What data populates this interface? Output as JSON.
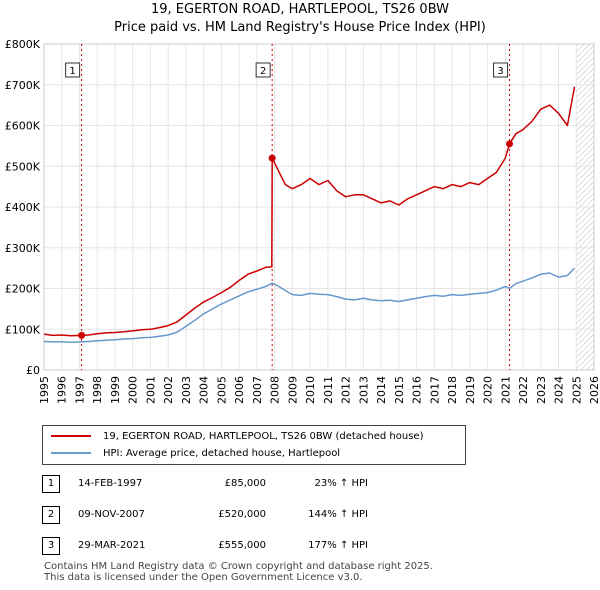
{
  "chart_data": {
    "type": "line",
    "title": "19, EGERTON ROAD, HARTLEPOOL, TS26 0BW",
    "subtitle": "Price paid vs. HM Land Registry's House Price Index (HPI)",
    "xlabel": "",
    "ylabel": "",
    "xlim": [
      1995,
      2026
    ],
    "ylim": [
      0,
      800000
    ],
    "x_ticks": [
      "1995",
      "1996",
      "1997",
      "1998",
      "1999",
      "2000",
      "2001",
      "2002",
      "2003",
      "2004",
      "2005",
      "2006",
      "2007",
      "2008",
      "2009",
      "2010",
      "2011",
      "2012",
      "2013",
      "2014",
      "2015",
      "2016",
      "2017",
      "2018",
      "2019",
      "2020",
      "2021",
      "2022",
      "2023",
      "2024",
      "2025",
      "2026"
    ],
    "y_ticks": [
      {
        "value": 0,
        "label": "£0"
      },
      {
        "value": 100000,
        "label": "£100K"
      },
      {
        "value": 200000,
        "label": "£200K"
      },
      {
        "value": 300000,
        "label": "£300K"
      },
      {
        "value": 400000,
        "label": "£400K"
      },
      {
        "value": 500000,
        "label": "£500K"
      },
      {
        "value": 600000,
        "label": "£600K"
      },
      {
        "value": 700000,
        "label": "£700K"
      },
      {
        "value": 800000,
        "label": "£800K"
      }
    ],
    "series": [
      {
        "name": "19, EGERTON ROAD, HARTLEPOOL, TS26 0BW (detached house)",
        "color": "#cc0000",
        "x": [
          1995.0,
          1995.5,
          1996.0,
          1996.5,
          1997.12,
          1997.5,
          1998.0,
          1998.5,
          1999.0,
          1999.5,
          2000.0,
          2000.5,
          2001.0,
          2001.5,
          2002.0,
          2002.5,
          2003.0,
          2003.5,
          2004.0,
          2004.5,
          2005.0,
          2005.5,
          2006.0,
          2006.5,
          2007.0,
          2007.5,
          2007.84,
          2007.86,
          2008.2,
          2008.6,
          2009.0,
          2009.5,
          2010.0,
          2010.5,
          2011.0,
          2011.5,
          2012.0,
          2012.5,
          2013.0,
          2013.5,
          2014.0,
          2014.5,
          2015.0,
          2015.5,
          2016.0,
          2016.5,
          2017.0,
          2017.5,
          2018.0,
          2018.5,
          2019.0,
          2019.5,
          2020.0,
          2020.5,
          2021.0,
          2021.24,
          2021.6,
          2022.0,
          2022.5,
          2023.0,
          2023.5,
          2024.0,
          2024.5,
          2024.9
        ],
        "values": [
          88000,
          85000,
          86000,
          84000,
          85000,
          86000,
          89000,
          91000,
          92000,
          94000,
          96000,
          99000,
          100000,
          104000,
          109000,
          118000,
          135000,
          152000,
          167000,
          178000,
          190000,
          203000,
          220000,
          235000,
          243000,
          252000,
          253000,
          520000,
          490000,
          455000,
          445000,
          455000,
          470000,
          455000,
          465000,
          440000,
          425000,
          430000,
          430000,
          420000,
          410000,
          415000,
          405000,
          420000,
          430000,
          440000,
          450000,
          445000,
          455000,
          450000,
          460000,
          455000,
          470000,
          485000,
          520000,
          555000,
          580000,
          590000,
          610000,
          640000,
          650000,
          630000,
          600000,
          695000
        ]
      },
      {
        "name": "HPI: Average price, detached house, Hartlepool",
        "color": "#6699cc",
        "x": [
          1995.0,
          1995.5,
          1996.0,
          1996.5,
          1997.12,
          1997.5,
          1998.0,
          1998.5,
          1999.0,
          1999.5,
          2000.0,
          2000.5,
          2001.0,
          2001.5,
          2002.0,
          2002.5,
          2003.0,
          2003.5,
          2004.0,
          2004.5,
          2005.0,
          2005.5,
          2006.0,
          2006.5,
          2007.0,
          2007.5,
          2007.86,
          2008.2,
          2008.6,
          2009.0,
          2009.5,
          2010.0,
          2010.5,
          2011.0,
          2011.5,
          2012.0,
          2012.5,
          2013.0,
          2013.5,
          2014.0,
          2014.5,
          2015.0,
          2015.5,
          2016.0,
          2016.5,
          2017.0,
          2017.5,
          2018.0,
          2018.5,
          2019.0,
          2019.5,
          2020.0,
          2020.5,
          2021.0,
          2021.24,
          2021.6,
          2022.0,
          2022.5,
          2023.0,
          2023.5,
          2024.0,
          2024.5,
          2024.9
        ],
        "values": [
          70000,
          69000,
          69000,
          68000,
          69000,
          70000,
          72000,
          73000,
          74000,
          76000,
          77000,
          79000,
          80000,
          83000,
          86000,
          93000,
          107000,
          122000,
          138000,
          150000,
          162000,
          172000,
          182000,
          192000,
          198000,
          205000,
          213000,
          206000,
          195000,
          185000,
          183000,
          188000,
          186000,
          185000,
          180000,
          174000,
          172000,
          176000,
          172000,
          170000,
          171000,
          168000,
          172000,
          176000,
          180000,
          183000,
          181000,
          185000,
          183000,
          186000,
          188000,
          190000,
          196000,
          205000,
          200000,
          212000,
          218000,
          226000,
          235000,
          238000,
          228000,
          232000,
          250000
        ]
      }
    ],
    "sales": [
      {
        "label": "1",
        "x": 1997.12,
        "value": 85000
      },
      {
        "label": "2",
        "x": 2007.86,
        "value": 520000
      },
      {
        "label": "3",
        "x": 2021.24,
        "value": 555000
      }
    ]
  },
  "legend": {
    "property_label": "19, EGERTON ROAD, HARTLEPOOL, TS26 0BW (detached house)",
    "hpi_label": "HPI: Average price, detached house, Hartlepool",
    "property_color": "#cc0000",
    "hpi_color": "#6699cc"
  },
  "sales_table": [
    {
      "num": "1",
      "date": "14-FEB-1997",
      "price": "£85,000",
      "hpi": "23% ↑ HPI"
    },
    {
      "num": "2",
      "date": "09-NOV-2007",
      "price": "£520,000",
      "hpi": "144% ↑ HPI"
    },
    {
      "num": "3",
      "date": "29-MAR-2021",
      "price": "£555,000",
      "hpi": "177% ↑ HPI"
    }
  ],
  "footer": {
    "line1": "Contains HM Land Registry data © Crown copyright and database right 2025.",
    "line2": "This data is licensed under the Open Government Licence v3.0."
  }
}
